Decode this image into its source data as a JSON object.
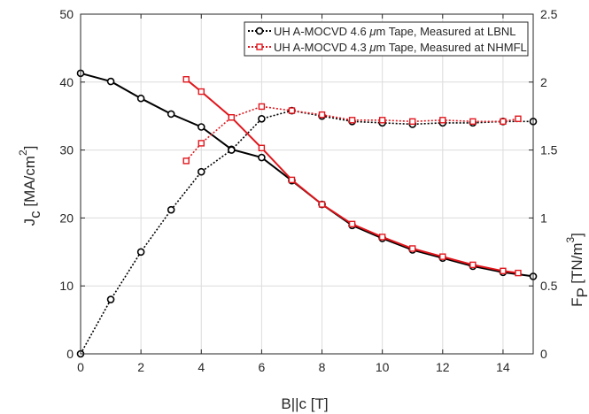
{
  "chart_data": {
    "type": "line",
    "xlabel": "B||c [T]",
    "ylabel_left": {
      "base": "J",
      "sub": "c",
      "unit_pre": " [MA/cm",
      "sup": "2",
      "unit_post": "]"
    },
    "ylabel_right": {
      "base": "F",
      "sub": "P",
      "unit_pre": " [TN/m",
      "sup": "3",
      "unit_post": "]"
    },
    "xlim": [
      0,
      15
    ],
    "ylim_left": [
      0,
      50
    ],
    "ylim_right": [
      0,
      2.5
    ],
    "x_ticks": [
      0,
      2,
      4,
      6,
      8,
      10,
      12,
      14
    ],
    "y_left_ticks": [
      0,
      10,
      20,
      30,
      40,
      50
    ],
    "y_right_ticks": [
      0,
      0.5,
      1,
      1.5,
      2,
      2.5
    ],
    "y_right_tick_labels": [
      "0",
      "0.5",
      "1",
      "1.5",
      "2",
      "2.5"
    ],
    "grid": true,
    "legend_position": "top-right",
    "legend": [
      {
        "pre": "UH A-MOCVD 4.6 ",
        "mu": "μ",
        "post": "m Tape, Measured at LBNL",
        "color": "#000000",
        "marker": "circle"
      },
      {
        "pre": "UH A-MOCVD 4.3 ",
        "mu": "μ",
        "post": "m Tape, Measured at NHMFL",
        "color": "#e0161c",
        "marker": "square"
      }
    ],
    "series": [
      {
        "id": "lbnl_jc",
        "axis": "left",
        "color": "#000000",
        "marker": "circle",
        "line": "solid",
        "x": [
          0,
          1,
          2,
          3,
          4,
          5,
          6,
          7,
          8,
          9,
          10,
          11,
          12,
          13,
          14,
          15
        ],
        "y": [
          41.3,
          40.1,
          37.6,
          35.3,
          33.4,
          30.1,
          28.9,
          25.5,
          22.0,
          18.9,
          17.0,
          15.3,
          14.1,
          12.9,
          12.0,
          11.4
        ]
      },
      {
        "id": "lbnl_fp",
        "axis": "right",
        "color": "#000000",
        "marker": "circle",
        "line": "dotted",
        "x": [
          0,
          1,
          2,
          3,
          4,
          5,
          6,
          7,
          8,
          9,
          10,
          11,
          12,
          13,
          14,
          15
        ],
        "y": [
          0,
          0.4,
          0.75,
          1.06,
          1.34,
          1.5,
          1.73,
          1.79,
          1.75,
          1.71,
          1.7,
          1.69,
          1.7,
          1.7,
          1.71,
          1.71
        ]
      },
      {
        "id": "nhmfl_jc",
        "axis": "left",
        "color": "#e0161c",
        "marker": "square",
        "line": "solid",
        "x": [
          3.5,
          4,
          5,
          6,
          7,
          8,
          9,
          10,
          11,
          12,
          13,
          14,
          14.5
        ],
        "y": [
          40.4,
          38.6,
          34.8,
          30.3,
          25.6,
          22.0,
          19.1,
          17.2,
          15.5,
          14.3,
          13.1,
          12.2,
          11.9
        ]
      },
      {
        "id": "nhmfl_fp",
        "axis": "right",
        "color": "#e0161c",
        "marker": "square",
        "line": "dotted",
        "x": [
          3.5,
          4,
          5,
          6,
          7,
          8,
          9,
          10,
          11,
          12,
          13,
          14,
          14.5
        ],
        "y": [
          1.42,
          1.55,
          1.74,
          1.82,
          1.79,
          1.76,
          1.72,
          1.72,
          1.71,
          1.72,
          1.71,
          1.71,
          1.73
        ]
      }
    ]
  }
}
